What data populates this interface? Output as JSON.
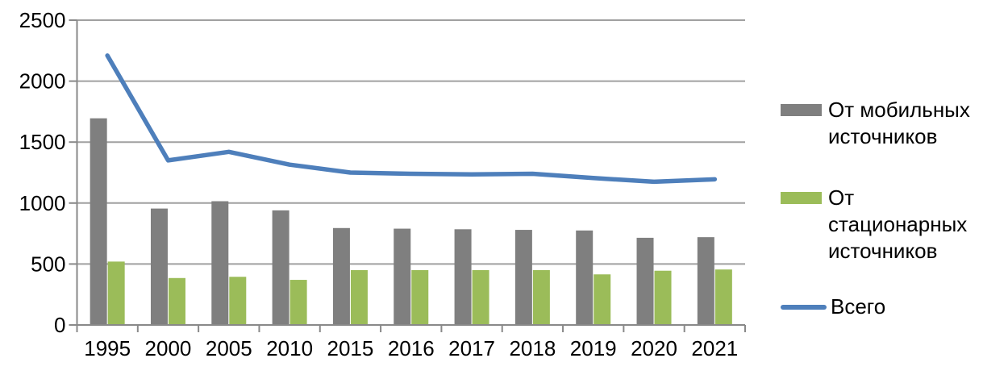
{
  "chart_data": {
    "type": "combo",
    "title": "",
    "categories": [
      "1995",
      "2000",
      "2005",
      "2010",
      "2015",
      "2016",
      "2017",
      "2018",
      "2019",
      "2020",
      "2021"
    ],
    "y_axis": {
      "min": 0,
      "max": 2500,
      "tick_step": 500,
      "tick_labels": [
        "0",
        "500",
        "1000",
        "1500",
        "2000",
        "2500"
      ]
    },
    "series": [
      {
        "name": "От мобильных источников",
        "type": "bar",
        "color": "#7F7F7F",
        "values": [
          1695,
          955,
          1015,
          940,
          795,
          790,
          785,
          780,
          775,
          715,
          720
        ]
      },
      {
        "name": "От стационарных источников",
        "type": "bar",
        "color": "#9BBC59",
        "values": [
          520,
          385,
          395,
          370,
          450,
          450,
          450,
          450,
          415,
          445,
          455
        ]
      },
      {
        "name": "Всего",
        "type": "line",
        "color": "#4E7FBB",
        "values": [
          2210,
          1350,
          1420,
          1315,
          1250,
          1240,
          1235,
          1240,
          1205,
          1175,
          1195
        ]
      }
    ],
    "legend": {
      "position": "right",
      "entries": [
        "От мобильных источников",
        "От стационарных источников",
        "Всего"
      ]
    },
    "grid": true,
    "colors": {
      "gridline": "#A0A0A0",
      "axis": "#898989",
      "text": "#000000",
      "background": "#FFFFFF"
    }
  }
}
